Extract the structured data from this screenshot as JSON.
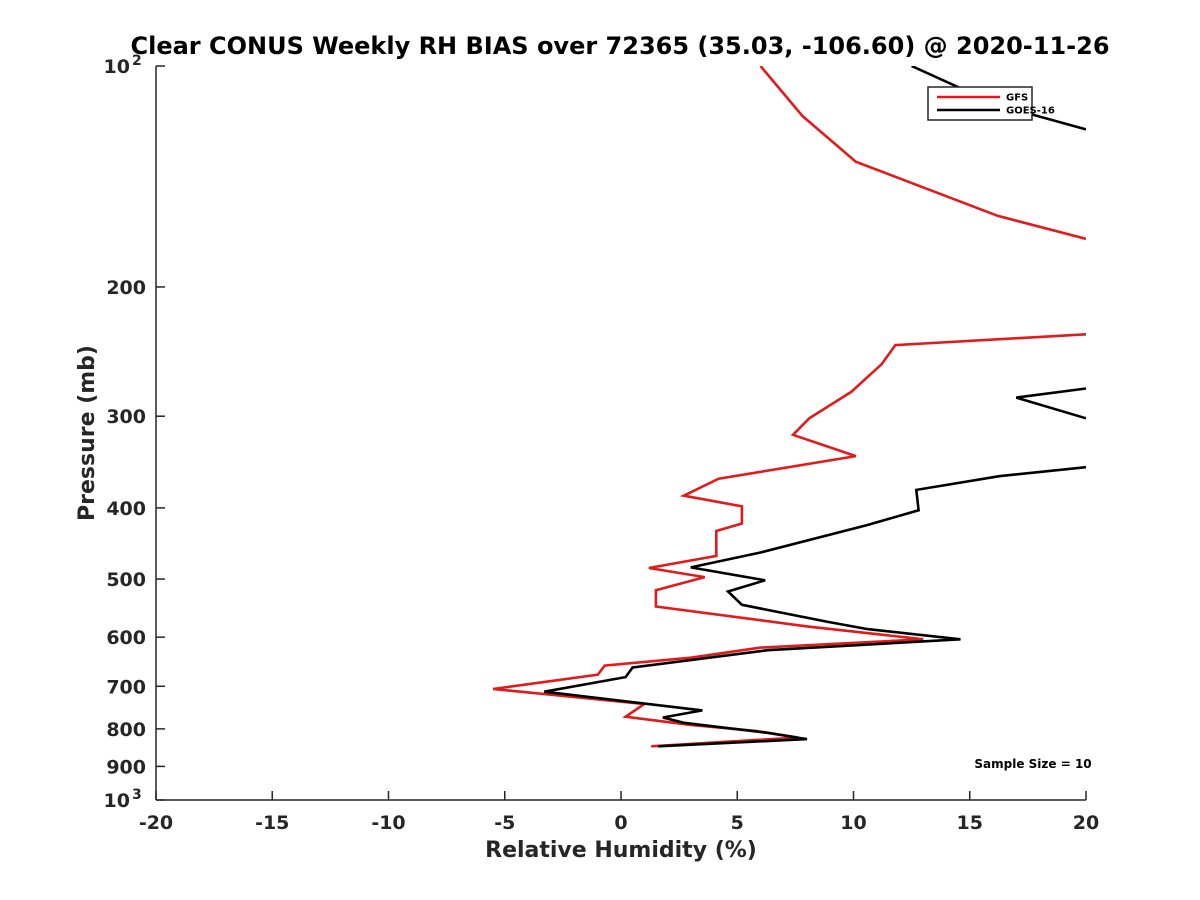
{
  "chart_data": {
    "type": "line",
    "title": "Clear CONUS Weekly RH BIAS over 72365 (35.03, -106.60) @ 2020-11-26",
    "xlabel": "Relative Humidity (%)",
    "ylabel": "Pressure (mb)",
    "xlim": [
      -20,
      20
    ],
    "ylim": [
      100,
      1000
    ],
    "yscale": "log",
    "y_reversed": true,
    "grid": false,
    "legend_position": "top-right",
    "x_ticks": [
      "-20",
      "-15",
      "-10",
      "-5",
      "0",
      "5",
      "10",
      "15",
      "20"
    ],
    "y_ticks": [
      {
        "value": 100,
        "base": "10",
        "exp": "2"
      },
      {
        "value": 200,
        "label": "200"
      },
      {
        "value": 300,
        "label": "300"
      },
      {
        "value": 400,
        "label": "400"
      },
      {
        "value": 500,
        "label": "500"
      },
      {
        "value": 600,
        "label": "600"
      },
      {
        "value": 700,
        "label": "700"
      },
      {
        "value": 800,
        "label": "800"
      },
      {
        "value": 900,
        "label": "900"
      },
      {
        "value": 1000,
        "base": "10",
        "exp": "3"
      }
    ],
    "series": [
      {
        "name": "GFS",
        "color": "#e31a1c",
        "points": [
          [
            6.0,
            100
          ],
          [
            7.8,
            117
          ],
          [
            10.1,
            135
          ],
          [
            16.2,
            160
          ],
          [
            20.0,
            172
          ],
          [
            null,
            null
          ],
          [
            20.0,
            232
          ],
          [
            11.8,
            240
          ],
          [
            11.2,
            255
          ],
          [
            9.9,
            278
          ],
          [
            8.1,
            302
          ],
          [
            7.4,
            318
          ],
          [
            10.1,
            340
          ],
          [
            4.2,
            365
          ],
          [
            2.7,
            385
          ],
          [
            5.2,
            398
          ],
          [
            5.2,
            420
          ],
          [
            4.1,
            430
          ],
          [
            4.1,
            465
          ],
          [
            1.2,
            483
          ],
          [
            3.6,
            497
          ],
          [
            1.5,
            518
          ],
          [
            1.5,
            545
          ],
          [
            8.0,
            580
          ],
          [
            13.0,
            604
          ],
          [
            6.0,
            620
          ],
          [
            3.0,
            640
          ],
          [
            -0.7,
            656
          ],
          [
            -1.0,
            675
          ],
          [
            -5.5,
            706
          ],
          [
            1.0,
            740
          ],
          [
            0.2,
            770
          ],
          [
            3.0,
            790
          ],
          [
            5.8,
            805
          ],
          [
            7.6,
            822
          ],
          [
            1.3,
            845
          ]
        ]
      },
      {
        "name": "GOES-16",
        "color": "#000000",
        "points": [
          [
            12.5,
            100
          ],
          [
            16.2,
            113
          ],
          [
            20.0,
            122
          ],
          [
            null,
            null
          ],
          [
            20.0,
            275
          ],
          [
            17.0,
            283
          ],
          [
            20.0,
            302
          ],
          [
            null,
            null
          ],
          [
            20.0,
            352
          ],
          [
            16.3,
            362
          ],
          [
            12.7,
            378
          ],
          [
            12.8,
            403
          ],
          [
            10.6,
            422
          ],
          [
            6.0,
            460
          ],
          [
            3.0,
            482
          ],
          [
            6.2,
            502
          ],
          [
            4.6,
            520
          ],
          [
            5.2,
            542
          ],
          [
            8.9,
            572
          ],
          [
            10.6,
            585
          ],
          [
            14.6,
            604
          ],
          [
            6.3,
            625
          ],
          [
            0.5,
            660
          ],
          [
            0.2,
            680
          ],
          [
            -3.3,
            712
          ],
          [
            3.5,
            755
          ],
          [
            1.8,
            772
          ],
          [
            2.7,
            785
          ],
          [
            6.3,
            810
          ],
          [
            8.0,
            826
          ],
          [
            1.6,
            845
          ]
        ]
      }
    ],
    "annotations": [
      {
        "text": "Sample Size = 10",
        "x": 15.2,
        "y": 905
      }
    ]
  }
}
